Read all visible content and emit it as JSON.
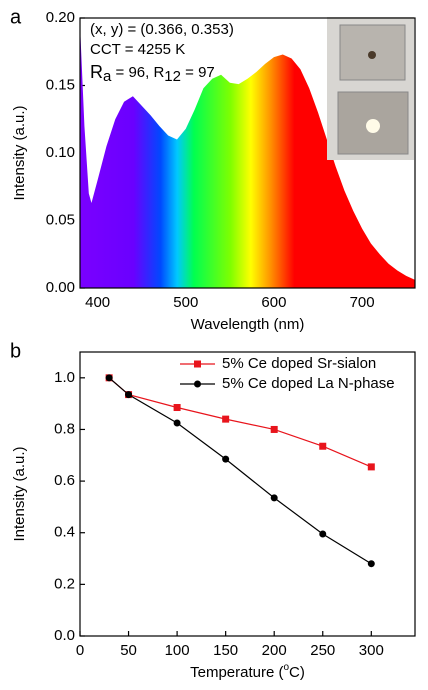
{
  "chart_data": [
    {
      "type": "area",
      "panel": "a",
      "y_label": "Intensity (a.u.)",
      "x_label": "Wavelength (nm)",
      "annotations": [
        "(x, y) = (0.366, 0.353)",
        "CCT = 4255 K"
      ],
      "ra_line": [
        "R",
        "a",
        " = 96, R",
        "12",
        " = 97"
      ],
      "x": [
        380,
        385,
        390,
        393,
        400,
        410,
        420,
        430,
        440,
        450,
        460,
        470,
        480,
        490,
        500,
        510,
        520,
        530,
        540,
        550,
        560,
        570,
        580,
        590,
        600,
        610,
        620,
        630,
        640,
        650,
        660,
        670,
        680,
        690,
        700,
        710,
        720,
        730,
        740,
        750,
        760
      ],
      "values": [
        0.195,
        0.12,
        0.07,
        0.063,
        0.08,
        0.105,
        0.125,
        0.138,
        0.142,
        0.135,
        0.128,
        0.12,
        0.113,
        0.11,
        0.118,
        0.132,
        0.148,
        0.155,
        0.158,
        0.152,
        0.151,
        0.155,
        0.16,
        0.166,
        0.171,
        0.173,
        0.17,
        0.162,
        0.148,
        0.13,
        0.11,
        0.09,
        0.072,
        0.057,
        0.044,
        0.033,
        0.025,
        0.018,
        0.013,
        0.009,
        0.006
      ],
      "xlim": [
        380,
        760
      ],
      "xticks": [
        400,
        500,
        600,
        700
      ],
      "ylim": [
        0,
        0.2
      ],
      "yticks": [
        {
          "value": 0,
          "label": "0.00"
        },
        0.05,
        {
          "value": 0.1,
          "label": "0.10"
        },
        0.15,
        {
          "value": 0.2,
          "label": "0.20"
        }
      ]
    },
    {
      "type": "line",
      "panel": "b",
      "y_label": "Intensity (a.u.)",
      "x_label": [
        "Temperature (",
        "o",
        "C)"
      ],
      "x": [
        30,
        50,
        100,
        150,
        200,
        250,
        300
      ],
      "series": [
        {
          "name": "5% Ce doped Sr-sialon",
          "color": "#e8141c",
          "marker": "square",
          "values": [
            1.0,
            0.935,
            0.885,
            0.84,
            0.8,
            0.735,
            0.655
          ]
        },
        {
          "name": "5% Ce doped La N-phase",
          "color": "#000000",
          "marker": "circle",
          "values": [
            1.0,
            0.935,
            0.825,
            0.685,
            0.535,
            0.395,
            0.28
          ]
        }
      ],
      "xlim": [
        0,
        345
      ],
      "xticks": [
        0,
        50,
        100,
        150,
        200,
        250,
        300
      ],
      "ylim": [
        0,
        1.1
      ],
      "yticks": [
        {
          "value": 0,
          "label": "0.0"
        },
        0.2,
        0.4,
        0.6,
        0.8,
        {
          "value": 1,
          "label": "1.0"
        }
      ]
    }
  ]
}
